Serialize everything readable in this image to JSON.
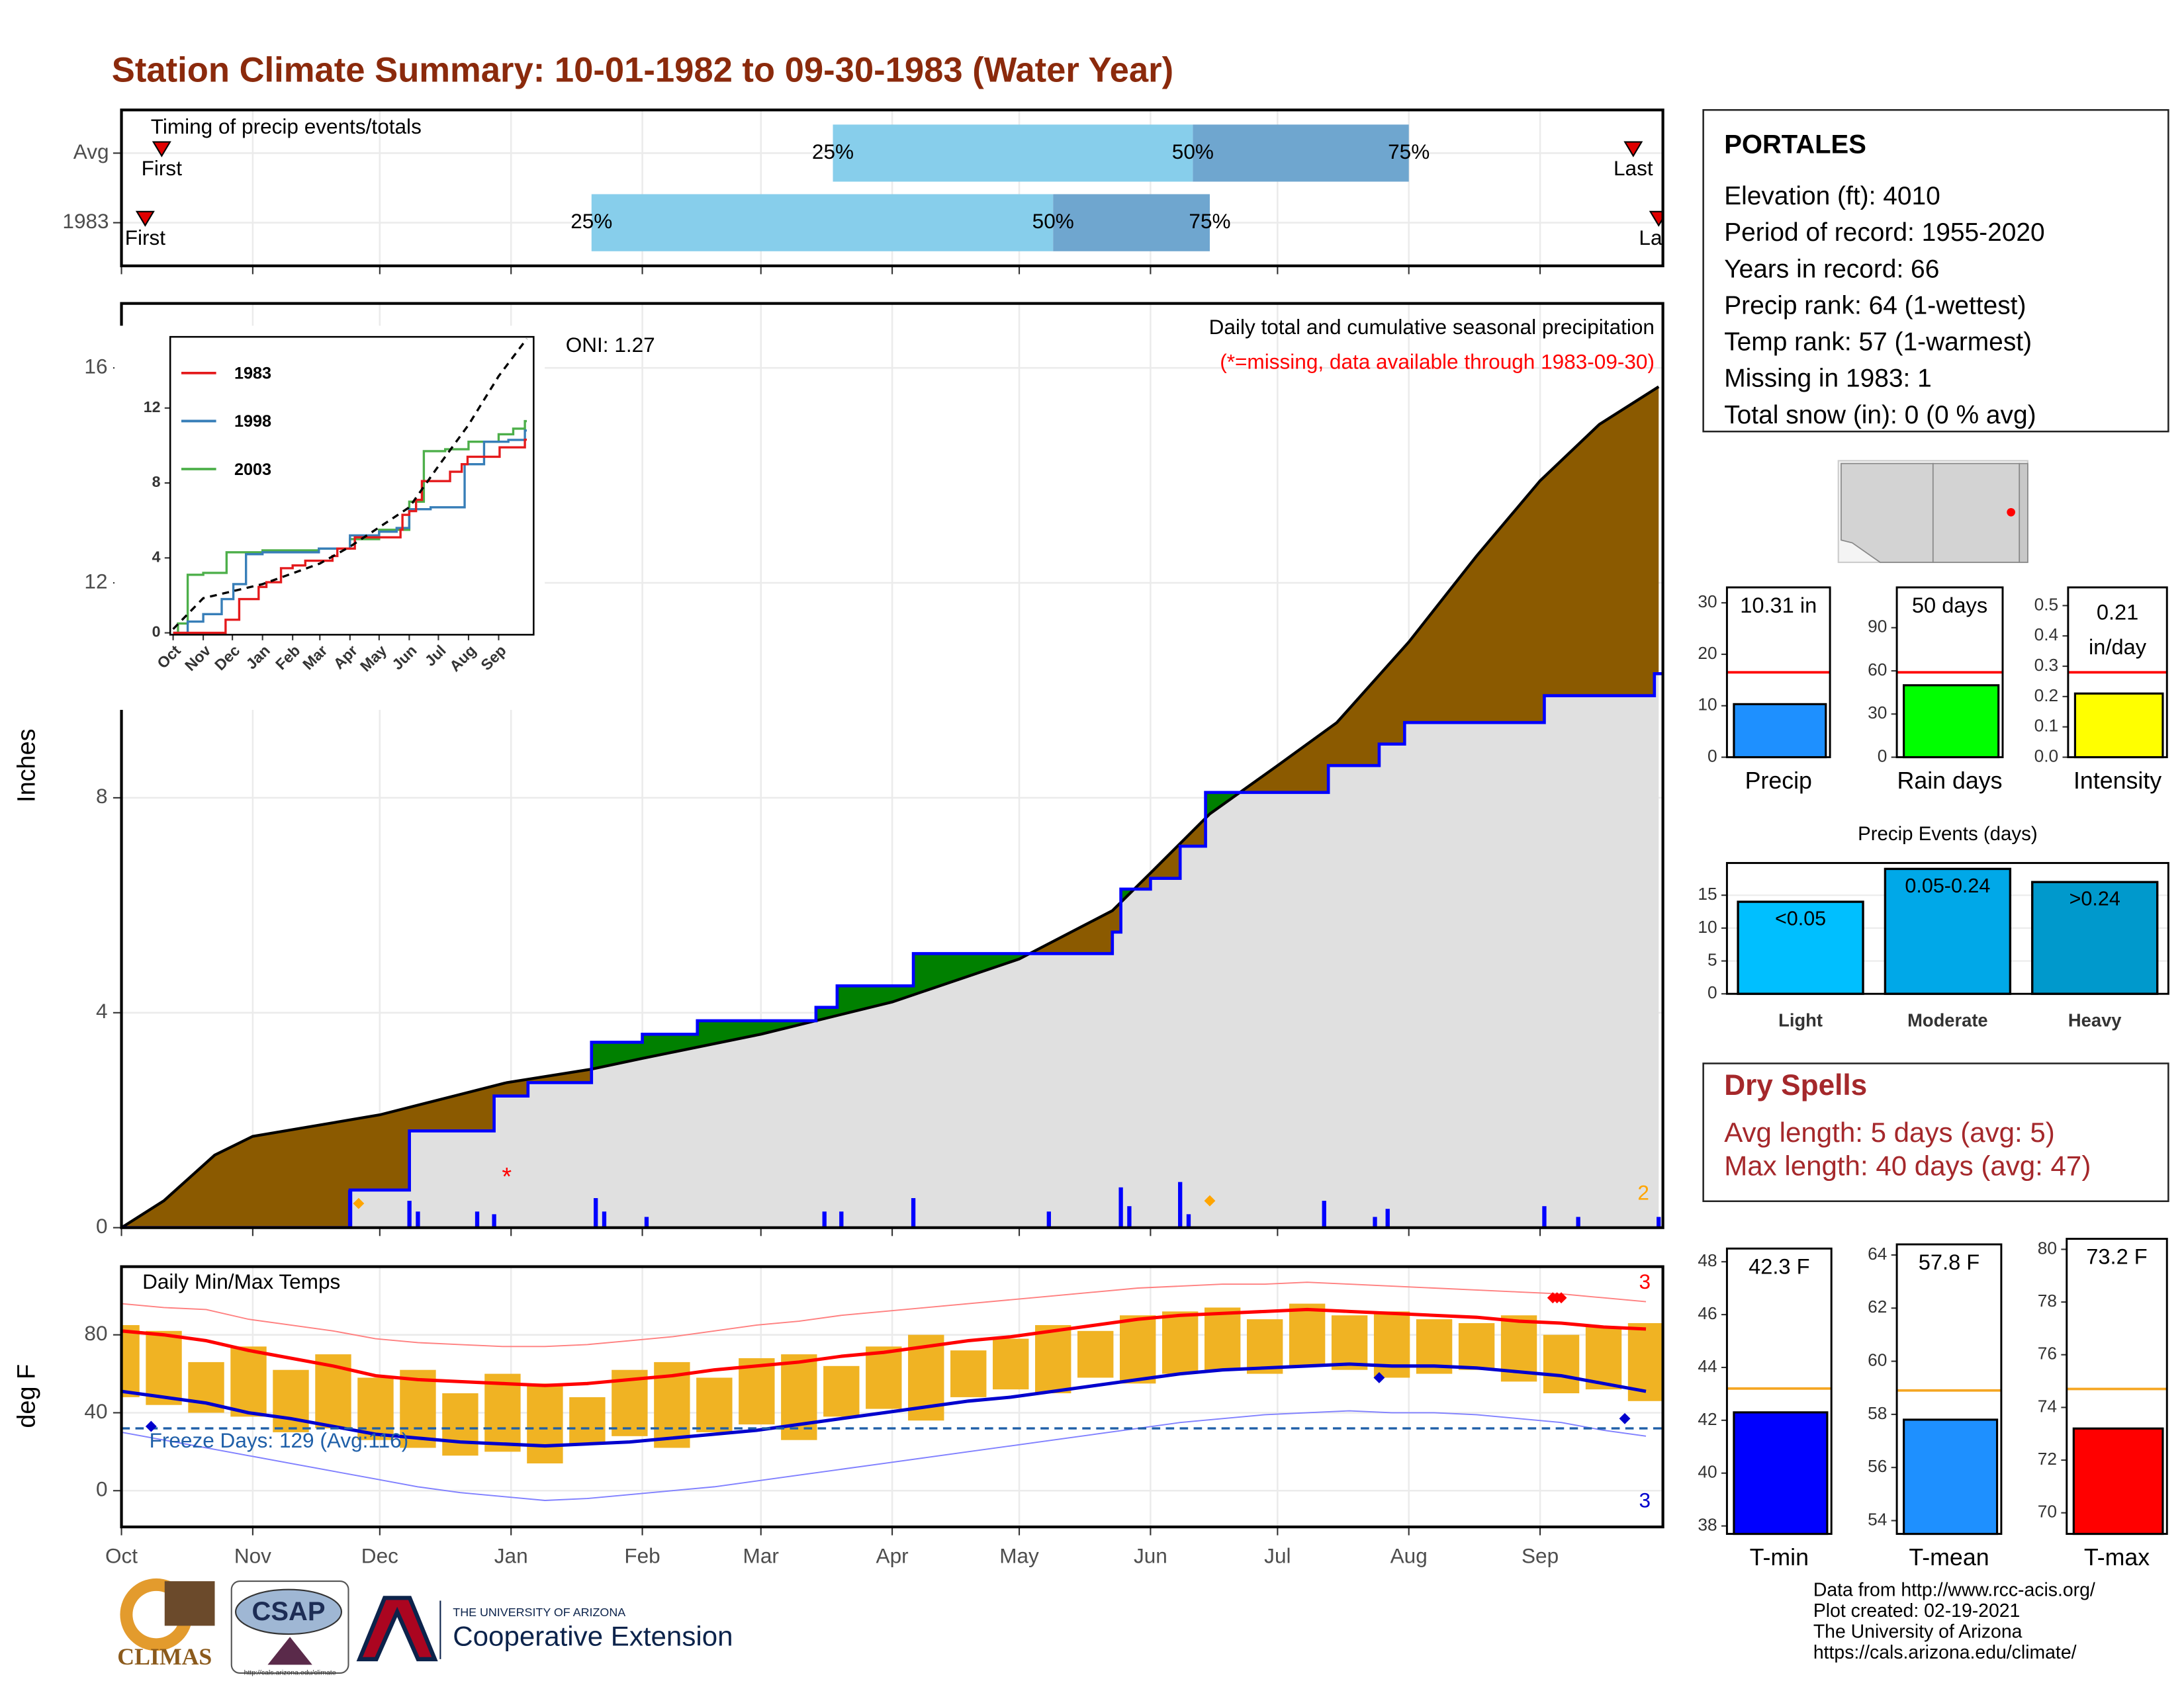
{
  "title": "Station Climate Summary: 10-01-1982 to 09-30-1983 (Water Year)",
  "chart_data": [
    {
      "type": "timing",
      "title": "Timing of precip events/totals",
      "categories": [
        "Avg",
        "1983"
      ],
      "series": [
        {
          "name": "First",
          "values": [
            9.5,
            5.6
          ]
        },
        {
          "name": "25%",
          "values": [
            168,
            111
          ]
        },
        {
          "name": "50%",
          "values": [
            253,
            220
          ]
        },
        {
          "name": "75%",
          "values": [
            304,
            257
          ]
        },
        {
          "name": "Last",
          "values": [
            357,
            363
          ]
        }
      ],
      "colors": [
        "#87ceeb",
        "#6fa6cf"
      ],
      "xlim": [
        0,
        364
      ],
      "xticks": [
        0,
        31,
        61,
        92,
        123,
        151,
        182,
        212,
        243,
        273,
        304,
        335
      ]
    },
    {
      "type": "cumulative",
      "title": "Daily total and cumulative seasonal precipitation",
      "subtitle": "(*=missing, data available through 1983-09-30)",
      "annotation": "ONI: 1.27",
      "ylabel": "Inches",
      "average": {
        "x": [
          0,
          10,
          22,
          31,
          61,
          91,
          111,
          123,
          151,
          182,
          212,
          234,
          243,
          257,
          273,
          287,
          304,
          320,
          335,
          349,
          363
        ],
        "values": [
          0,
          0.5,
          1.35,
          1.7,
          2.1,
          2.7,
          2.95,
          3.15,
          3.6,
          4.2,
          5.0,
          5.9,
          6.6,
          7.7,
          8.6,
          9.4,
          10.9,
          12.5,
          13.9,
          14.95,
          15.65
        ]
      },
      "observed": {
        "x": [
          0,
          54,
          68,
          88,
          96,
          111,
          123,
          136,
          164,
          169,
          187,
          234,
          236,
          243,
          250,
          256,
          285,
          297,
          303,
          336,
          362
        ],
        "values": [
          0,
          0.7,
          1.8,
          2.45,
          2.7,
          3.45,
          3.6,
          3.85,
          4.1,
          4.5,
          5.1,
          5.5,
          6.3,
          6.5,
          7.1,
          8.1,
          8.6,
          9.0,
          9.4,
          9.9,
          10.31
        ]
      },
      "daily": {
        "x": [
          54,
          68,
          70,
          84,
          88,
          112,
          114,
          124,
          166,
          170,
          187,
          219,
          236,
          238,
          250,
          252,
          284,
          296,
          299,
          336,
          344,
          363
        ],
        "values": [
          0.7,
          0.5,
          0.3,
          0.3,
          0.25,
          0.55,
          0.3,
          0.2,
          0.3,
          0.3,
          0.55,
          0.3,
          0.75,
          0.4,
          0.85,
          0.25,
          0.5,
          0.2,
          0.35,
          0.4,
          0.2,
          0.2
        ]
      },
      "markers": {
        "x": [
          56,
          257
        ],
        "values": [
          0.45,
          0.5
        ]
      },
      "marker_count": 2,
      "missing": {
        "x": [
          91
        ],
        "values": [
          1.0
        ],
        "label": "*"
      },
      "colors": {
        "average": "#000000",
        "observed": "#0000ff",
        "below": "#8b5a00",
        "above": "#008000",
        "base": "#e0e0e0",
        "marker": "#ffa500",
        "missing": "#ff0000"
      },
      "xlim": [
        0,
        364
      ],
      "xticks": [
        0,
        31,
        61,
        92,
        123,
        151,
        182,
        212,
        243,
        273,
        304,
        335
      ],
      "ylim": [
        0,
        17.2
      ],
      "yticks": [
        0,
        4,
        8,
        12,
        16
      ]
    },
    {
      "type": "inset_lines",
      "series": [
        {
          "name": "1983",
          "color": "#e41a1c",
          "x": [
            0,
            54,
            68,
            88,
            96,
            111,
            123,
            136,
            164,
            169,
            187,
            234,
            236,
            243,
            250,
            256,
            285,
            297,
            303,
            336,
            362
          ],
          "values": [
            0,
            0.7,
            1.8,
            2.45,
            2.7,
            3.45,
            3.6,
            3.85,
            4.1,
            4.5,
            5.1,
            5.5,
            6.3,
            6.5,
            7.1,
            8.1,
            8.6,
            9.0,
            9.4,
            9.9,
            10.31
          ]
        },
        {
          "name": "1998",
          "color": "#377eb8",
          "x": [
            0,
            15,
            31,
            50,
            62,
            75,
            92,
            150,
            182,
            212,
            230,
            243,
            265,
            285,
            300,
            320,
            345,
            362
          ],
          "values": [
            0,
            0.6,
            1.0,
            1.8,
            2.6,
            4.2,
            4.3,
            4.5,
            5.2,
            5.4,
            5.6,
            6.6,
            6.7,
            6.7,
            9.0,
            10.2,
            10.3,
            10.8
          ]
        },
        {
          "name": "2003",
          "color": "#4daf4a",
          "x": [
            0,
            5,
            15,
            31,
            55,
            92,
            150,
            182,
            212,
            243,
            258,
            280,
            304,
            335,
            350,
            362
          ],
          "values": [
            0,
            0.5,
            3.1,
            3.2,
            4.3,
            4.4,
            4.5,
            5.0,
            5.5,
            7.0,
            9.7,
            9.8,
            10.2,
            10.6,
            10.9,
            11.3
          ]
        }
      ],
      "average": {
        "x": [
          0,
          31,
          92,
          151,
          182,
          243,
          273,
          304,
          335,
          364
        ],
        "values": [
          0.2,
          1.85,
          2.6,
          3.7,
          4.6,
          6.7,
          8.9,
          11.1,
          13.7,
          15.7
        ]
      },
      "xlim": [
        -3,
        371
      ],
      "xticks": [
        {
          "value": 0,
          "label": "Oct"
        },
        {
          "value": 31,
          "label": "Nov"
        },
        {
          "value": 61,
          "label": "Dec"
        },
        {
          "value": 92,
          "label": "Jan"
        },
        {
          "value": 123,
          "label": "Feb"
        },
        {
          "value": 151,
          "label": "Mar"
        },
        {
          "value": 182,
          "label": "Apr"
        },
        {
          "value": 212,
          "label": "May"
        },
        {
          "value": 243,
          "label": "Jun"
        },
        {
          "value": 273,
          "label": "Jul"
        },
        {
          "value": 304,
          "label": "Aug"
        },
        {
          "value": 335,
          "label": "Sep"
        }
      ],
      "ylim": [
        -0.1,
        15.8
      ],
      "yticks": [
        0,
        4,
        8,
        12
      ],
      "legend": "top-left"
    },
    {
      "type": "temperature",
      "title": "Daily Min/Max Temps",
      "annotation": "Freeze Days: 129 (Avg:116)",
      "ylabel": "deg F",
      "freeze_threshold": 32,
      "x": [
        0,
        10,
        20,
        30,
        40,
        50,
        60,
        70,
        80,
        90,
        100,
        110,
        120,
        130,
        140,
        150,
        160,
        170,
        180,
        190,
        200,
        210,
        220,
        230,
        240,
        250,
        260,
        270,
        280,
        290,
        300,
        310,
        320,
        330,
        340,
        350,
        360
      ],
      "max": [
        85,
        82,
        66,
        74,
        62,
        70,
        58,
        62,
        50,
        60,
        55,
        48,
        62,
        66,
        58,
        68,
        70,
        64,
        74,
        80,
        72,
        78,
        85,
        82,
        90,
        92,
        94,
        88,
        96,
        90,
        92,
        88,
        86,
        90,
        80,
        84,
        86
      ],
      "min": [
        48,
        44,
        40,
        38,
        30,
        32,
        26,
        22,
        18,
        20,
        14,
        24,
        28,
        22,
        30,
        34,
        26,
        38,
        42,
        36,
        48,
        52,
        50,
        58,
        55,
        60,
        62,
        60,
        64,
        62,
        58,
        60,
        62,
        56,
        50,
        52,
        46
      ],
      "normal_max": [
        82,
        80,
        77,
        72,
        68,
        64,
        59,
        57,
        56,
        55,
        54,
        55,
        57,
        59,
        62,
        64,
        66,
        69,
        71,
        74,
        77,
        79,
        82,
        85,
        88,
        90,
        91,
        92,
        93,
        92,
        91,
        90,
        89,
        87,
        86,
        84,
        83
      ],
      "normal_min": [
        51,
        48,
        45,
        40,
        37,
        33,
        29,
        27,
        25,
        24,
        23,
        24,
        25,
        27,
        29,
        31,
        34,
        37,
        40,
        43,
        46,
        48,
        51,
        54,
        57,
        60,
        62,
        63,
        64,
        65,
        64,
        64,
        63,
        61,
        59,
        55,
        51
      ],
      "record_max": [
        96,
        94,
        93,
        88,
        85,
        82,
        78,
        76,
        75,
        74,
        74,
        75,
        77,
        79,
        82,
        85,
        87,
        90,
        92,
        94,
        96,
        98,
        100,
        102,
        104,
        105,
        106,
        106,
        107,
        106,
        105,
        104,
        103,
        102,
        101,
        99,
        97
      ],
      "record_min": [
        30,
        26,
        22,
        18,
        14,
        10,
        6,
        2,
        -1,
        -3,
        -5,
        -4,
        -2,
        0,
        2,
        5,
        8,
        11,
        14,
        17,
        20,
        23,
        26,
        29,
        32,
        35,
        37,
        39,
        40,
        41,
        40,
        40,
        39,
        37,
        35,
        31,
        28
      ],
      "record_highs": {
        "x": [
          338,
          339,
          340
        ],
        "values": [
          99,
          99,
          99
        ]
      },
      "record_high_count": 3,
      "record_lows": {
        "x": [
          7,
          297,
          355
        ],
        "values": [
          33,
          58,
          37
        ]
      },
      "record_low_count": 3,
      "colors": {
        "bar": "#f0b323",
        "normal_max": "#ff0000",
        "normal_min": "#0000cd",
        "record_max": "#ff8080",
        "record_min": "#8080ff",
        "freeze": "#1f5fa8"
      },
      "xlim": [
        0,
        364
      ],
      "xticks": [
        {
          "value": 0,
          "label": "Oct"
        },
        {
          "value": 31,
          "label": "Nov"
        },
        {
          "value": 61,
          "label": "Dec"
        },
        {
          "value": 92,
          "label": "Jan"
        },
        {
          "value": 123,
          "label": "Feb"
        },
        {
          "value": 151,
          "label": "Mar"
        },
        {
          "value": 182,
          "label": "Apr"
        },
        {
          "value": 212,
          "label": "May"
        },
        {
          "value": 243,
          "label": "Jun"
        },
        {
          "value": 273,
          "label": "Jul"
        },
        {
          "value": 304,
          "label": "Aug"
        },
        {
          "value": 335,
          "label": "Sep"
        }
      ],
      "ylim": [
        -18.6,
        115
      ],
      "yticks": [
        0,
        40,
        80
      ]
    },
    {
      "type": "single_bar",
      "label": "Precip",
      "value": 10.31,
      "value_label": "10.31 in",
      "average": 16.5,
      "color": "#1e90ff",
      "avg_color": "#ff0000",
      "ylim": [
        0,
        33
      ],
      "yticks": [
        0,
        10,
        20,
        30
      ]
    },
    {
      "type": "single_bar",
      "label": "Rain days",
      "value": 50,
      "value_label": "50 days",
      "average": 59,
      "color": "#00ff00",
      "avg_color": "#ff0000",
      "ylim": [
        0,
        118
      ],
      "yticks": [
        0,
        30,
        60,
        90
      ]
    },
    {
      "type": "single_bar",
      "label": "Intensity",
      "value": 0.21,
      "value_label": "0.21",
      "unit": "in/day",
      "average": 0.28,
      "color": "#ffff00",
      "avg_color": "#ff0000",
      "ylim": [
        0,
        0.56
      ],
      "yticks": [
        {
          "value": 0,
          "label": "0.0"
        },
        0.1,
        0.2,
        0.3,
        0.4,
        0.5
      ]
    },
    {
      "type": "bar",
      "title": "Precip Events (days)",
      "categories": [
        "Light",
        "Moderate",
        "Heavy"
      ],
      "values": [
        14,
        19,
        17
      ],
      "bar_labels": [
        "<0.05",
        "0.05-0.24",
        ">0.24"
      ],
      "colors": [
        "#00bfff",
        "#00a8e8",
        "#0099cc"
      ],
      "ylim": [
        0,
        19.9
      ],
      "yticks": [
        0,
        5,
        10,
        15
      ]
    },
    {
      "type": "single_bar",
      "label": "T-min",
      "value": 42.3,
      "value_label": "42.3 F",
      "average": 43.2,
      "color": "#0000ff",
      "avg_color": "#f5a623",
      "ylim": [
        37.7,
        48.5
      ],
      "yticks": [
        38,
        40,
        42,
        44,
        46,
        48
      ]
    },
    {
      "type": "single_bar",
      "label": "T-mean",
      "value": 57.8,
      "value_label": "57.8 F",
      "average": 58.9,
      "color": "#1e90ff",
      "avg_color": "#f5a623",
      "ylim": [
        53.5,
        64.4
      ],
      "yticks": [
        54,
        56,
        58,
        60,
        62,
        64
      ]
    },
    {
      "type": "single_bar",
      "label": "T-max",
      "value": 73.2,
      "value_label": "73.2 F",
      "average": 74.7,
      "color": "#ff0000",
      "avg_color": "#f5a623",
      "ylim": [
        69.2,
        80.4
      ],
      "yticks": [
        70,
        72,
        74,
        76,
        78,
        80
      ]
    }
  ],
  "station": {
    "name": "PORTALES",
    "lines": [
      "Elevation (ft): 4010",
      "Period of record: 1955-2020",
      "Years in record: 66",
      "Precip rank: 64 (1-wettest)",
      "Temp rank: 57 (1-warmest)",
      "Missing in 1983: 1",
      "Total snow (in): 0 (0 % avg)"
    ]
  },
  "dry_spells": {
    "title": "Dry Spells",
    "lines": [
      "Avg length: 5 days (avg: 5)",
      "Max length: 40 days (avg: 47)"
    ]
  },
  "footer": [
    "Data from http://www.rcc-acis.org/",
    "Plot created: 02-19-2021",
    "The University of Arizona",
    "https://cals.arizona.edu/climate/"
  ],
  "logos": {
    "climas": "CLIMAS",
    "csap": "CSAP",
    "csap_url": "http://cals.arizona.edu/climate",
    "university": "THE UNIVERSITY OF ARIZONA",
    "extension": "Cooperative Extension"
  }
}
